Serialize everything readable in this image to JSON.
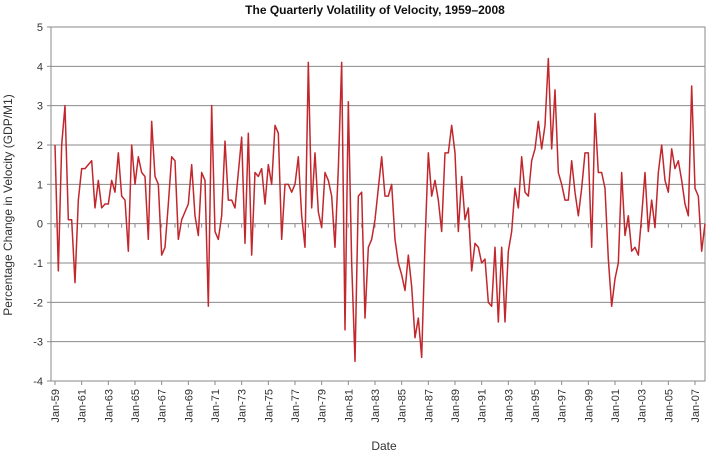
{
  "chart_data": {
    "type": "line",
    "title": "The Quarterly Volatility of Velocity, 1959–2008",
    "xlabel": "Date",
    "ylabel": "Percentage Change in Velocity (GDP/M1)",
    "ylim": [
      -4,
      5
    ],
    "yticks": [
      "-4",
      "-3",
      "-2",
      "-1",
      "0",
      "1",
      "2",
      "3",
      "4",
      "5"
    ],
    "xtick_labels": [
      "Jan-59",
      "Jan-61",
      "Jan-63",
      "Jan-65",
      "Jan-67",
      "Jan-69",
      "Jan-71",
      "Jan-73",
      "Jan-75",
      "Jan-77",
      "Jan-79",
      "Jan-81",
      "Jan-83",
      "Jan-85",
      "Jan-87",
      "Jan-89",
      "Jan-91",
      "Jan-93",
      "Jan-95",
      "Jan-97",
      "Jan-99",
      "Jan-01",
      "Jan-03",
      "Jan-05",
      "Jan-07"
    ],
    "grid": true,
    "line_color": "#c1272d",
    "series": [
      {
        "values": [
          2.0,
          -1.2,
          2.0,
          3.0,
          0.1,
          0.1,
          -1.5,
          0.6,
          1.4,
          1.4,
          1.5,
          1.6,
          0.4,
          1.1,
          0.4,
          0.5,
          0.5,
          1.1,
          0.8,
          1.8,
          0.7,
          0.6,
          -0.7,
          2.0,
          1.0,
          1.7,
          1.3,
          1.2,
          -0.4,
          2.6,
          1.2,
          1.0,
          -0.8,
          -0.6,
          0.5,
          1.7,
          1.6,
          -0.4,
          0.1,
          0.3,
          0.5,
          1.5,
          0.2,
          -0.3,
          1.3,
          1.1,
          -2.1,
          3.0,
          -0.2,
          -0.4,
          0.2,
          2.1,
          0.6,
          0.6,
          0.4,
          1.3,
          2.2,
          -0.5,
          2.3,
          -0.8,
          1.3,
          1.2,
          1.4,
          0.5,
          1.5,
          1.0,
          2.5,
          2.3,
          -0.4,
          1.0,
          1.0,
          0.8,
          1.0,
          1.7,
          0.2,
          -0.6,
          4.1,
          0.4,
          1.8,
          0.3,
          -0.1,
          1.3,
          1.1,
          0.7,
          -0.6,
          1.4,
          4.1,
          -2.7,
          3.1,
          -1.0,
          -3.5,
          0.7,
          0.8,
          -2.4,
          -0.6,
          -0.4,
          0.1,
          0.9,
          1.7,
          0.7,
          0.7,
          1.0,
          -0.4,
          -1.0,
          -1.3,
          -1.7,
          -0.8,
          -1.6,
          -2.9,
          -2.4,
          -3.4,
          -0.5,
          1.8,
          0.7,
          1.1,
          0.6,
          -0.2,
          1.8,
          1.8,
          2.5,
          1.8,
          -0.2,
          1.2,
          0.1,
          0.4,
          -1.2,
          -0.5,
          -0.6,
          -1.0,
          -0.9,
          -2.0,
          -2.1,
          -0.6,
          -2.5,
          -0.6,
          -2.5,
          -0.7,
          -0.2,
          0.9,
          0.4,
          1.7,
          0.8,
          0.7,
          1.6,
          1.9,
          2.6,
          1.9,
          2.5,
          4.2,
          1.9,
          3.4,
          1.3,
          1.0,
          0.6,
          0.6,
          1.6,
          0.8,
          0.2,
          0.9,
          1.8,
          1.8,
          -0.6,
          2.8,
          1.3,
          1.3,
          0.9,
          -0.9,
          -2.1,
          -1.4,
          -1.0,
          1.3,
          -0.3,
          0.2,
          -0.7,
          -0.6,
          -0.8,
          0.2,
          1.3,
          -0.2,
          0.6,
          -0.1,
          1.3,
          2.0,
          1.1,
          0.8,
          1.9,
          1.4,
          1.6,
          1.1,
          0.5,
          0.2,
          3.5,
          0.9,
          0.7,
          -0.7,
          0.0
        ]
      }
    ]
  }
}
